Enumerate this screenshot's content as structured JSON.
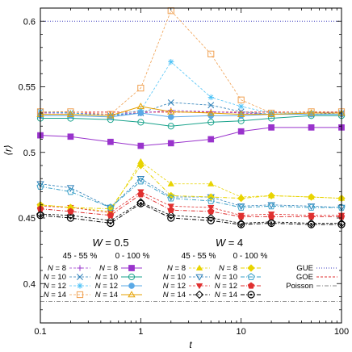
{
  "chart_data": {
    "type": "line",
    "xlabel": "t",
    "ylabel": "⟨r⟩",
    "xscale": "log",
    "xlim": [
      0.1,
      100
    ],
    "ylim": [
      0.37,
      0.61
    ],
    "x": [
      0.1,
      0.2,
      0.5,
      1,
      2,
      5,
      10,
      20,
      50,
      100
    ],
    "xticks": [
      0.1,
      1,
      10,
      100
    ],
    "xtick_labels": [
      "0.1",
      "1",
      "10",
      "100"
    ],
    "yticks": [
      0.4,
      0.45,
      0.5,
      0.55,
      0.6
    ],
    "ytick_labels": [
      "0.4",
      "0.45",
      "0.5",
      "0.55",
      "0.6"
    ],
    "legend_groups": {
      "w05": "W = 0.5",
      "w4": "W = 4",
      "pct_mid": "45 - 55 %",
      "pct_full": "0 - 100 %"
    },
    "series": [
      {
        "name": "N = 8",
        "group": "W05_mid",
        "color": "#9933cc",
        "marker": "plus",
        "values": [
          0.53,
          0.53,
          0.529,
          0.53,
          0.532,
          0.531,
          0.53,
          0.529,
          0.53,
          0.531
        ]
      },
      {
        "name": "N = 10",
        "group": "W05_mid",
        "color": "#2c7fb8",
        "marker": "x",
        "values": [
          0.531,
          0.53,
          0.528,
          0.53,
          0.538,
          0.536,
          0.531,
          0.529,
          0.529,
          0.53
        ]
      },
      {
        "name": "N = 12",
        "group": "W05_mid",
        "color": "#4fc3f7",
        "marker": "star",
        "values": [
          0.531,
          0.53,
          0.528,
          0.532,
          0.569,
          0.542,
          0.535,
          0.53,
          0.53,
          0.53
        ]
      },
      {
        "name": "N = 14",
        "group": "W05_mid",
        "color": "#f0a050",
        "marker": "square-open",
        "values": [
          0.531,
          0.531,
          0.529,
          0.549,
          0.608,
          0.575,
          0.54,
          0.53,
          0.531,
          0.531
        ]
      },
      {
        "name": "N = 8",
        "group": "W05_full",
        "color": "#9933cc",
        "marker": "square",
        "values": [
          0.513,
          0.512,
          0.508,
          0.505,
          0.507,
          0.51,
          0.516,
          0.519,
          0.519,
          0.519
        ]
      },
      {
        "name": "N = 10",
        "group": "W05_full",
        "color": "#1aa38c",
        "marker": "circle-open",
        "values": [
          0.526,
          0.526,
          0.525,
          0.523,
          0.52,
          0.523,
          0.524,
          0.526,
          0.528,
          0.528
        ]
      },
      {
        "name": "N = 12",
        "group": "W05_full",
        "color": "#5aa9e6",
        "marker": "circle",
        "values": [
          0.528,
          0.528,
          0.527,
          0.53,
          0.527,
          0.528,
          0.528,
          0.529,
          0.529,
          0.529
        ]
      },
      {
        "name": "N = 14",
        "group": "W05_full",
        "color": "#e6a100",
        "marker": "triangle-open",
        "values": [
          0.529,
          0.529,
          0.528,
          0.535,
          0.531,
          0.53,
          0.529,
          0.529,
          0.53,
          0.53
        ]
      },
      {
        "name": "N = 8",
        "group": "W4_mid",
        "color": "#e8d400",
        "marker": "triangle",
        "values": [
          0.46,
          0.458,
          0.455,
          0.493,
          0.476,
          0.476,
          0.466,
          0.467,
          0.466,
          0.465
        ]
      },
      {
        "name": "N = 10",
        "group": "W4_mid",
        "color": "#2c7fb8",
        "marker": "triangle-down-open",
        "values": [
          0.476,
          0.473,
          0.458,
          0.48,
          0.466,
          0.466,
          0.459,
          0.46,
          0.459,
          0.458
        ]
      },
      {
        "name": "N = 12",
        "group": "W4_mid",
        "color": "#e03030",
        "marker": "triangle-down",
        "values": [
          0.459,
          0.458,
          0.454,
          0.47,
          0.459,
          0.458,
          0.452,
          0.453,
          0.452,
          0.452
        ]
      },
      {
        "name": "N = 14",
        "group": "W4_mid",
        "color": "#000000",
        "marker": "diamond-open",
        "values": [
          0.453,
          0.452,
          0.448,
          0.462,
          0.452,
          0.45,
          0.446,
          0.447,
          0.446,
          0.446
        ]
      },
      {
        "name": "N = 8",
        "group": "W4_full",
        "color": "#e8d400",
        "marker": "diamond",
        "values": [
          0.46,
          0.458,
          0.457,
          0.49,
          0.467,
          0.466,
          0.465,
          0.467,
          0.466,
          0.465
        ]
      },
      {
        "name": "N = 10",
        "group": "W4_full",
        "color": "#3aa0c8",
        "marker": "pentagon-open",
        "values": [
          0.474,
          0.47,
          0.458,
          0.478,
          0.465,
          0.463,
          0.458,
          0.459,
          0.458,
          0.458
        ]
      },
      {
        "name": "N = 12",
        "group": "W4_full",
        "color": "#e03030",
        "marker": "pentagon",
        "values": [
          0.457,
          0.455,
          0.452,
          0.468,
          0.456,
          0.455,
          0.451,
          0.451,
          0.451,
          0.451
        ]
      },
      {
        "name": "N = 14",
        "group": "W4_full",
        "color": "#000000",
        "marker": "circle-dot",
        "values": [
          0.452,
          0.45,
          0.446,
          0.461,
          0.45,
          0.448,
          0.445,
          0.446,
          0.445,
          0.445
        ]
      }
    ],
    "reference_lines": [
      {
        "name": "GUE",
        "value": 0.6,
        "color": "#3b3bbf",
        "dash": "1,2"
      },
      {
        "name": "GOE",
        "value": 0.5307,
        "color": "#e03030",
        "dash": "3,2"
      },
      {
        "name": "Poisson",
        "value": 0.3863,
        "color": "#888888",
        "dash": "5,2,1,2"
      }
    ]
  }
}
